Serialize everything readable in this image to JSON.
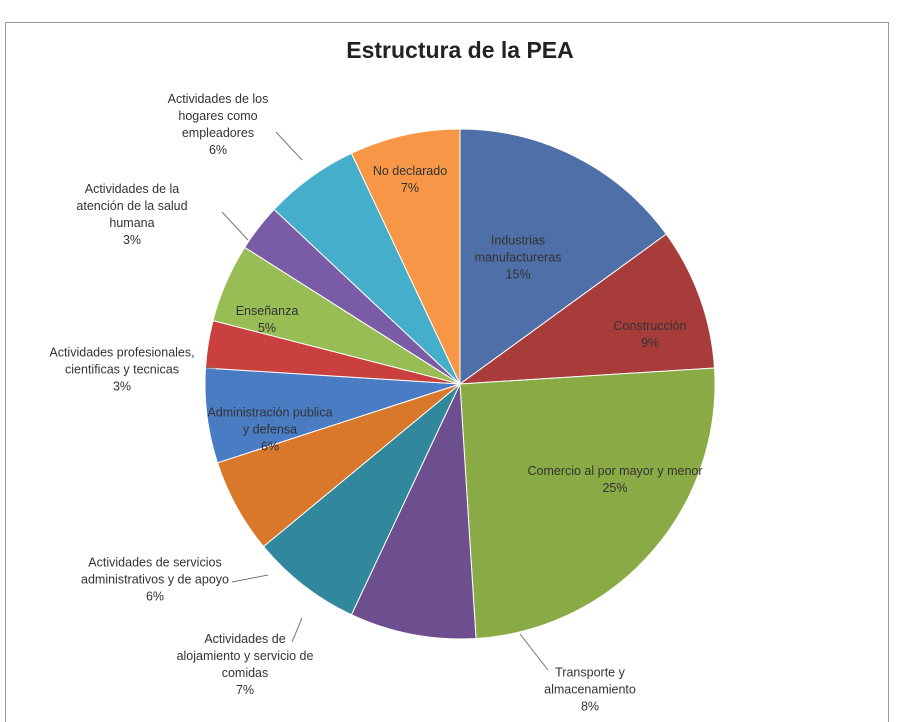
{
  "chart_data": {
    "type": "pie",
    "title": "Estructura de la PEA",
    "categories": [
      "Industrias manufactureras",
      "Construcción",
      "Comercio al por mayor y menor",
      "Transporte y almacenamiento",
      "Actividades de alojamiento y servicio de comidas",
      "Actividades de servicios administrativos y de apoyo",
      "Administración publica y defensa",
      "Actividades profesionales, cientificas y tecnicas",
      "Enseñanza",
      "Actividades de la atención de la salud humana",
      "Actividades de los hogares como empleadores",
      "No declarado"
    ],
    "values": [
      15,
      9,
      25,
      8,
      7,
      6,
      6,
      3,
      5,
      3,
      6,
      7
    ],
    "value_labels": [
      "15%",
      "9%",
      "25%",
      "8%",
      "7%",
      "6%",
      "6%",
      "3%",
      "5%",
      "3%",
      "6%",
      "7%"
    ],
    "colors": [
      "#4f6fa8",
      "#a83c3a",
      "#8aaa45",
      "#6d4f8f",
      "#31879c",
      "#d9782b",
      "#4a7cc4",
      "#c9403e",
      "#98bd55",
      "#7a5ba5",
      "#45aecb",
      "#f79646"
    ]
  }
}
